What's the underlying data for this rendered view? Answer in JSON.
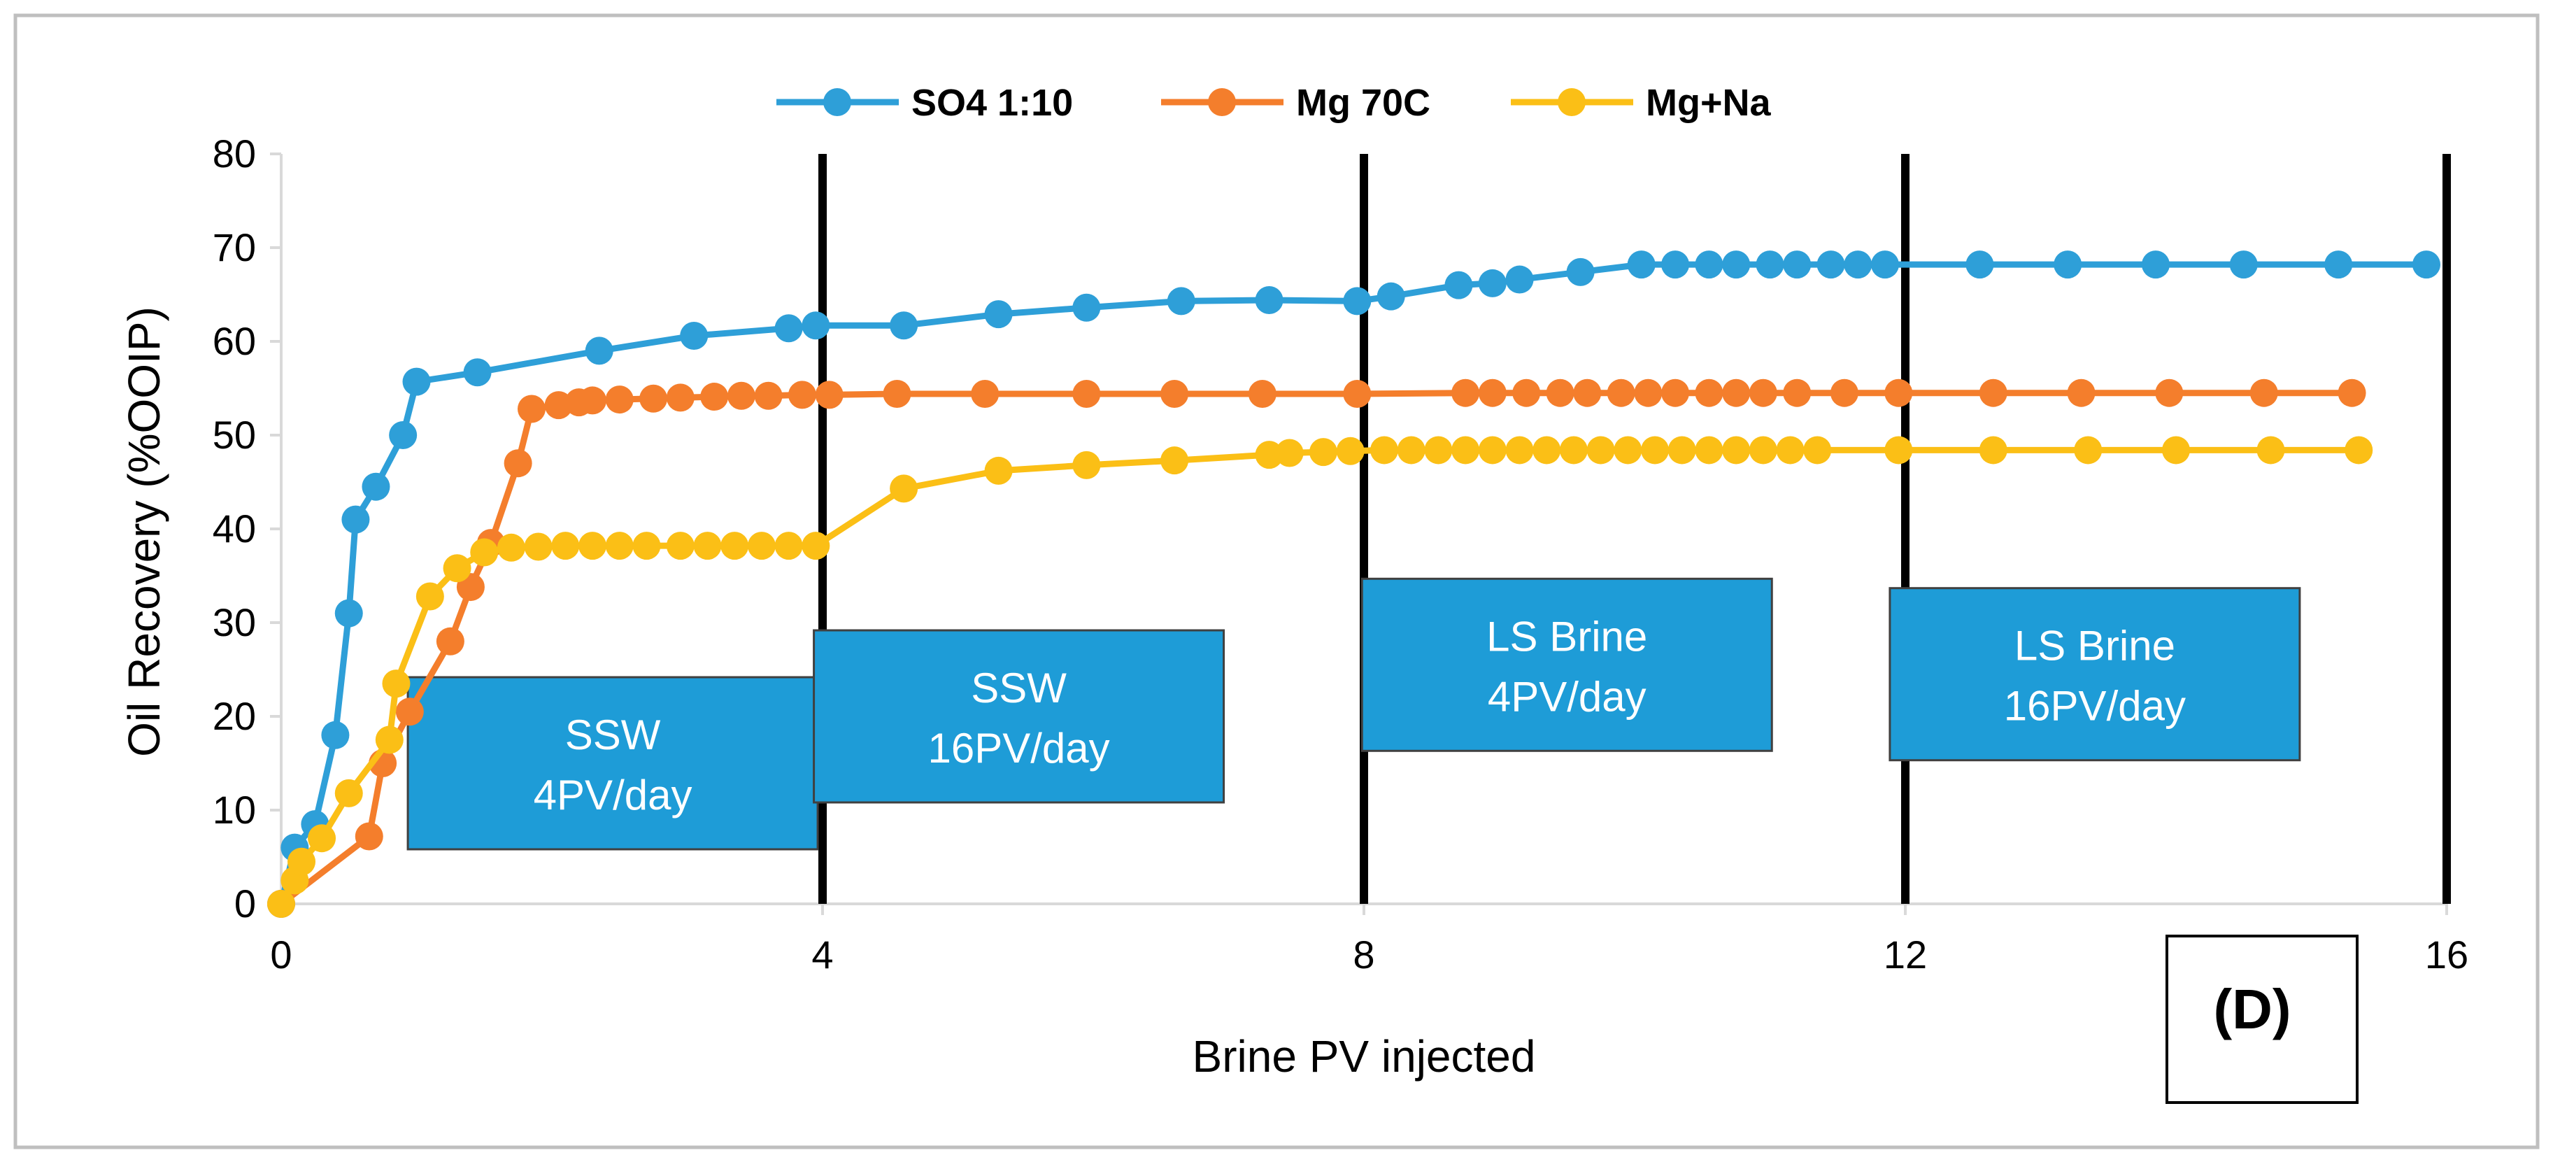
{
  "chart_data": {
    "type": "line",
    "title": "",
    "xlabel": "Brine PV injected",
    "ylabel": "Oil Recovery (%OOIP)",
    "xlim": [
      0,
      16
    ],
    "ylim": [
      0,
      80
    ],
    "xticks": [
      0,
      4,
      8,
      12,
      16
    ],
    "yticks": [
      0,
      10,
      20,
      30,
      40,
      50,
      60,
      70,
      80
    ],
    "grid": false,
    "legend_position": "top",
    "panel_label": "(D)",
    "phase_boundaries": [
      4,
      8,
      12,
      16
    ],
    "phase_boxes": [
      {
        "line1": "SSW",
        "line2": "4PV/day",
        "x_center": 2.45,
        "y_center": 15.0
      },
      {
        "line1": "SSW",
        "line2": "16PV/day",
        "x_center": 5.45,
        "y_center": 20.0
      },
      {
        "line1": "LS Brine",
        "line2": "4PV/day",
        "x_center": 9.5,
        "y_center": 25.5
      },
      {
        "line1": "LS Brine",
        "line2": "16PV/day",
        "x_center": 13.4,
        "y_center": 24.5
      }
    ],
    "series": [
      {
        "name": "SO4 1:10",
        "color": "#2e9fd8",
        "x": [
          0,
          0.1,
          0.25,
          0.4,
          0.5,
          0.55,
          0.7,
          0.9,
          1.0,
          1.45,
          2.35,
          3.05,
          3.75,
          3.95,
          4.6,
          5.3,
          5.95,
          6.65,
          7.3,
          7.95,
          8.2,
          8.7,
          8.95,
          9.15,
          9.6,
          10.05,
          10.3,
          10.55,
          10.75,
          11.0,
          11.2,
          11.45,
          11.65,
          11.85,
          12.55,
          13.2,
          13.85,
          14.5,
          15.2,
          15.85
        ],
        "y": [
          0,
          6,
          8.5,
          18,
          31,
          41,
          44.5,
          50,
          55.7,
          56.7,
          59,
          60.6,
          61.4,
          61.7,
          61.7,
          62.9,
          63.6,
          64.3,
          64.4,
          64.3,
          64.8,
          66,
          66.2,
          66.6,
          67.4,
          68.2,
          68.2,
          68.2,
          68.2,
          68.2,
          68.2,
          68.2,
          68.2,
          68.2,
          68.2,
          68.2,
          68.2,
          68.2,
          68.2,
          68.2
        ]
      },
      {
        "name": "Mg 70C",
        "color": "#f47e2c",
        "x": [
          0,
          0.65,
          0.75,
          0.95,
          1.25,
          1.4,
          1.55,
          1.75,
          1.85,
          2.05,
          2.2,
          2.3,
          2.5,
          2.75,
          2.95,
          3.2,
          3.4,
          3.6,
          3.85,
          4.05,
          4.55,
          5.2,
          5.95,
          6.6,
          7.25,
          7.95,
          8.75,
          8.95,
          9.2,
          9.45,
          9.65,
          9.9,
          10.1,
          10.3,
          10.55,
          10.75,
          10.95,
          11.2,
          11.55,
          11.95,
          12.65,
          13.3,
          13.95,
          14.65,
          15.3
        ],
        "y": [
          0,
          7.2,
          15,
          20.5,
          28,
          33.8,
          38.5,
          47,
          52.8,
          53.2,
          53.5,
          53.7,
          53.8,
          53.9,
          54.0,
          54.1,
          54.2,
          54.2,
          54.3,
          54.3,
          54.4,
          54.4,
          54.4,
          54.4,
          54.4,
          54.4,
          54.5,
          54.5,
          54.5,
          54.5,
          54.5,
          54.5,
          54.5,
          54.5,
          54.5,
          54.5,
          54.5,
          54.5,
          54.5,
          54.5,
          54.5,
          54.5,
          54.5,
          54.5,
          54.5
        ]
      },
      {
        "name": "Mg+Na",
        "color": "#fbbf16",
        "x": [
          0,
          0.1,
          0.15,
          0.3,
          0.5,
          0.8,
          0.85,
          1.1,
          1.3,
          1.5,
          1.7,
          1.9,
          2.1,
          2.3,
          2.5,
          2.7,
          2.95,
          3.15,
          3.35,
          3.55,
          3.75,
          3.95,
          4.6,
          5.3,
          5.95,
          6.6,
          7.3,
          7.45,
          7.7,
          7.9,
          8.15,
          8.35,
          8.55,
          8.75,
          8.95,
          9.15,
          9.35,
          9.55,
          9.75,
          9.95,
          10.15,
          10.35,
          10.55,
          10.75,
          10.95,
          11.15,
          11.35,
          11.95,
          12.65,
          13.35,
          14.0,
          14.7,
          15.35
        ],
        "y": [
          0,
          2.5,
          4.5,
          7,
          11.8,
          17.5,
          23.5,
          32.8,
          35.8,
          37.5,
          38.0,
          38.1,
          38.2,
          38.2,
          38.2,
          38.2,
          38.2,
          38.2,
          38.2,
          38.2,
          38.2,
          38.2,
          44.3,
          46.2,
          46.8,
          47.3,
          47.9,
          48.1,
          48.2,
          48.3,
          48.4,
          48.4,
          48.4,
          48.4,
          48.4,
          48.4,
          48.4,
          48.4,
          48.4,
          48.4,
          48.4,
          48.4,
          48.4,
          48.4,
          48.4,
          48.4,
          48.4,
          48.4,
          48.4,
          48.4,
          48.4,
          48.4,
          48.4
        ]
      }
    ]
  }
}
